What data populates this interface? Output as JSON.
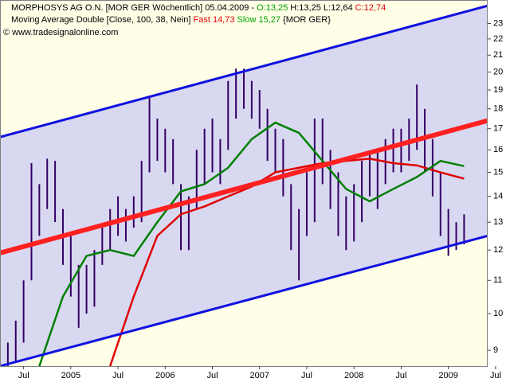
{
  "chart_data": {
    "type": "range",
    "header": {
      "line1": {
        "name": "MORPHOSYS AG O.N. [MOR GER  Wöchentlich] 05.04.2009 - ",
        "open": "O:13,25",
        "hl": " H:13,25 L:12,64 ",
        "close": "C:12,74"
      },
      "line2": {
        "name": "Moving Average Double [Close, 100, 38, Nein] ",
        "fast": "Fast 14,73",
        "slow": " Slow 15,27",
        "tail": " {MOR GER}"
      },
      "line3": "© www.tradesignalonline.com",
      "colors": {
        "open": "#00a000",
        "close": "#e00000",
        "fast": "#e00000",
        "slow": "#00a000"
      }
    },
    "log_scale": true,
    "bar_color": "#330066",
    "x": [
      "2004-05",
      "2004-06",
      "2004-07",
      "2004-08",
      "2004-09",
      "2004-10",
      "2004-11",
      "2004-12",
      "2005-01",
      "2005-02",
      "2005-03",
      "2005-04",
      "2005-05",
      "2005-06",
      "2005-07",
      "2005-08",
      "2005-09",
      "2005-10",
      "2005-11",
      "2005-12",
      "2006-01",
      "2006-02",
      "2006-03",
      "2006-04",
      "2006-05",
      "2006-06",
      "2006-07",
      "2006-08",
      "2006-09",
      "2006-10",
      "2006-11",
      "2006-12",
      "2007-01",
      "2007-02",
      "2007-03",
      "2007-04",
      "2007-05",
      "2007-06",
      "2007-07",
      "2007-08",
      "2007-09",
      "2007-10",
      "2007-11",
      "2007-12",
      "2008-01",
      "2008-02",
      "2008-03",
      "2008-04",
      "2008-05",
      "2008-06",
      "2008-07",
      "2008-08",
      "2008-09",
      "2008-10",
      "2008-11",
      "2008-12",
      "2009-01",
      "2009-02",
      "2009-03"
    ],
    "high": [
      9.2,
      9.8,
      11.0,
      15.4,
      14.5,
      15.6,
      15.5,
      13.5,
      12.5,
      11.5,
      11.5,
      12.0,
      12.8,
      13.5,
      14.0,
      13.5,
      14.0,
      15.5,
      18.7,
      17.5,
      17.0,
      16.5,
      14.5,
      14.0,
      16.0,
      17.0,
      17.5,
      16.5,
      19.5,
      20.2,
      20.2,
      19.5,
      19.0,
      18.0,
      17.0,
      16.5,
      14.5,
      13.5,
      15.0,
      17.5,
      17.5,
      16.0,
      15.0,
      14.0,
      14.5,
      15.5,
      15.8,
      16.0,
      16.5,
      17.0,
      17.0,
      17.5,
      19.3,
      18.0,
      16.5,
      15.0,
      13.5,
      13.0,
      13.3
    ],
    "low": [
      8.6,
      8.7,
      9.2,
      11.0,
      12.5,
      13.5,
      13.0,
      11.5,
      10.5,
      9.6,
      10.0,
      10.2,
      11.5,
      12.0,
      12.5,
      12.3,
      12.8,
      13.0,
      15.0,
      15.5,
      15.0,
      14.5,
      12.0,
      12.0,
      13.5,
      14.5,
      15.0,
      14.5,
      16.0,
      17.5,
      18.0,
      17.5,
      17.0,
      15.5,
      15.0,
      14.0,
      12.0,
      11.0,
      12.5,
      13.0,
      14.5,
      13.5,
      12.5,
      12.0,
      12.3,
      13.0,
      14.0,
      13.5,
      14.5,
      15.0,
      15.0,
      15.5,
      16.0,
      15.0,
      14.0,
      12.5,
      11.8,
      12.0,
      12.2
    ],
    "ma_lines": [
      {
        "color": "#e00000",
        "x": [
          "2005-06",
          "2005-09",
          "2005-12",
          "2006-03",
          "2006-06",
          "2006-09",
          "2006-12",
          "2007-03",
          "2007-06",
          "2007-09",
          "2007-12",
          "2008-03",
          "2008-06",
          "2008-09",
          "2008-12",
          "2009-03"
        ],
        "values": [
          8.6,
          10.5,
          12.5,
          13.3,
          13.6,
          14.0,
          14.4,
          15.0,
          15.2,
          15.4,
          15.5,
          15.6,
          15.4,
          15.3,
          15.0,
          14.73
        ]
      },
      {
        "color": "#008000",
        "x": [
          "2004-09",
          "2004-12",
          "2005-03",
          "2005-06",
          "2005-09",
          "2005-12",
          "2006-03",
          "2006-06",
          "2006-09",
          "2006-12",
          "2007-03",
          "2007-06",
          "2007-09",
          "2007-12",
          "2008-03",
          "2008-06",
          "2008-09",
          "2008-12",
          "2009-03"
        ],
        "values": [
          8.6,
          10.5,
          11.8,
          12.0,
          11.8,
          13.0,
          14.2,
          14.5,
          15.2,
          16.5,
          17.3,
          16.8,
          15.5,
          14.3,
          13.8,
          14.3,
          14.8,
          15.5,
          15.27
        ]
      }
    ],
    "trendlines": [
      {
        "color": "#1010e0",
        "width": 3,
        "start": [
          "2004-04",
          16.6
        ],
        "end": [
          "2009-06",
          24.2
        ]
      },
      {
        "color": "#1010e0",
        "width": 3,
        "start": [
          "2004-04",
          8.6
        ],
        "end": [
          "2009-06",
          12.5
        ]
      },
      {
        "color": "#ff2020",
        "width": 6,
        "start": [
          "2004-04",
          11.9
        ],
        "end": [
          "2009-06",
          17.4
        ]
      }
    ],
    "channel_fill": "#d8d8f0",
    "plot_bg": "#ffffe8",
    "xlim": [
      "2004-04",
      "2009-06"
    ],
    "xticks": [
      {
        "value": "2004-07",
        "label": "Jul"
      },
      {
        "value": "2005-01",
        "label": "2005"
      },
      {
        "value": "2005-07",
        "label": "Jul"
      },
      {
        "value": "2006-01",
        "label": "2006"
      },
      {
        "value": "2006-07",
        "label": "Jul"
      },
      {
        "value": "2007-01",
        "label": "2007"
      },
      {
        "value": "2007-07",
        "label": "Jul"
      },
      {
        "value": "2008-01",
        "label": "2008"
      },
      {
        "value": "2008-07",
        "label": "Jul"
      },
      {
        "value": "2009-01",
        "label": "2009"
      },
      {
        "value": "2009-07",
        "label": "Jul"
      }
    ],
    "ylim": [
      8.6,
      24.6
    ],
    "yticks": [
      9,
      10,
      11,
      12,
      13,
      14,
      15,
      16,
      17,
      18,
      19,
      20,
      21,
      22,
      23
    ]
  }
}
